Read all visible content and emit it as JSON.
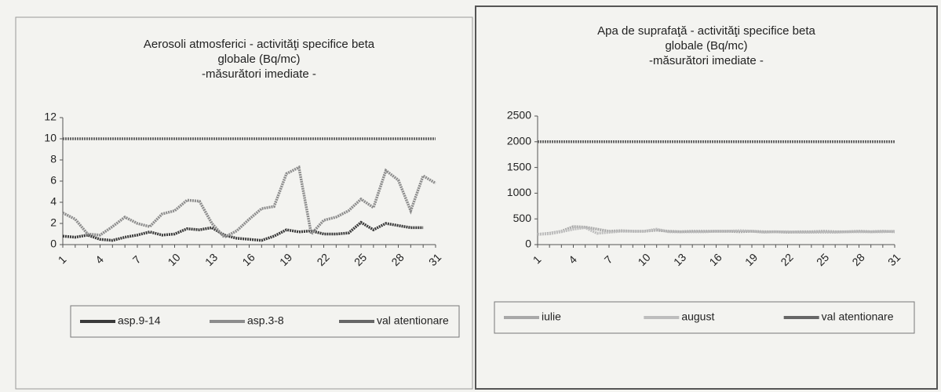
{
  "chart_data": [
    {
      "type": "line",
      "title": [
        "Aerosoli atmosferici  - activităţi specifice beta",
        "globale (Bq/mc)",
        "-măsurători imediate -"
      ],
      "categories": [
        1,
        null,
        null,
        4,
        null,
        null,
        7,
        null,
        null,
        10,
        null,
        null,
        13,
        null,
        null,
        16,
        null,
        null,
        19,
        null,
        null,
        22,
        null,
        null,
        25,
        null,
        null,
        28,
        null,
        null,
        31
      ],
      "series": [
        {
          "name": "asp.9-14",
          "color": "#3a3a3a",
          "values": [
            0.8,
            0.7,
            0.9,
            0.5,
            0.4,
            0.7,
            0.9,
            1.2,
            0.9,
            1.0,
            1.5,
            1.4,
            1.6,
            0.9,
            0.6,
            0.5,
            0.4,
            0.8,
            1.4,
            1.2,
            1.3,
            1.0,
            1.0,
            1.1,
            2.1,
            1.4,
            2.0,
            1.8,
            1.6,
            1.6,
            null
          ]
        },
        {
          "name": "asp.3-8",
          "color": "#8c8c8c",
          "values": [
            3.0,
            2.4,
            1.0,
            0.9,
            1.7,
            2.6,
            2.0,
            1.7,
            2.9,
            3.2,
            4.2,
            4.1,
            2.0,
            0.7,
            1.3,
            2.4,
            3.4,
            3.6,
            6.7,
            7.3,
            1.0,
            2.3,
            2.6,
            3.2,
            4.3,
            3.5,
            7.0,
            6.1,
            3.2,
            6.5,
            5.8
          ]
        },
        {
          "name": "val atentionare",
          "color": "#666666",
          "values": [
            10,
            10,
            10,
            10,
            10,
            10,
            10,
            10,
            10,
            10,
            10,
            10,
            10,
            10,
            10,
            10,
            10,
            10,
            10,
            10,
            10,
            10,
            10,
            10,
            10,
            10,
            10,
            10,
            10,
            10,
            10
          ]
        }
      ],
      "ylim": [
        0,
        12
      ],
      "yticks": [
        0,
        2,
        4,
        6,
        8,
        10,
        12
      ],
      "legend": "bottom"
    },
    {
      "type": "line",
      "title": [
        "Apa de suprafaţă - activităţi specifice beta",
        "globale (Bq/mc)",
        "-măsurători imediate -"
      ],
      "categories": [
        1,
        null,
        null,
        4,
        null,
        null,
        7,
        null,
        null,
        10,
        null,
        null,
        13,
        null,
        null,
        16,
        null,
        null,
        19,
        null,
        null,
        22,
        null,
        null,
        25,
        null,
        null,
        28,
        null,
        null,
        31
      ],
      "series": [
        {
          "name": "iulie",
          "color": "#a8a8a8",
          "values": [
            200,
            220,
            260,
            350,
            340,
            300,
            260,
            270,
            260,
            260,
            280,
            260,
            250,
            260,
            260,
            260,
            260,
            250,
            260,
            250,
            250,
            240,
            250,
            250,
            260,
            250,
            250,
            260,
            250,
            260,
            250
          ]
        },
        {
          "name": "august",
          "color": "#bdbdbd",
          "values": [
            200,
            210,
            250,
            300,
            330,
            220,
            240,
            260,
            260,
            260,
            300,
            250,
            250,
            250,
            250,
            260,
            260,
            270,
            260,
            240,
            250,
            250,
            240,
            240,
            240,
            240,
            250,
            250,
            250,
            250,
            260
          ]
        },
        {
          "name": "val atentionare",
          "color": "#666666",
          "values": [
            2000,
            2000,
            2000,
            2000,
            2000,
            2000,
            2000,
            2000,
            2000,
            2000,
            2000,
            2000,
            2000,
            2000,
            2000,
            2000,
            2000,
            2000,
            2000,
            2000,
            2000,
            2000,
            2000,
            2000,
            2000,
            2000,
            2000,
            2000,
            2000,
            2000,
            2000
          ]
        }
      ],
      "ylim": [
        0,
        2500
      ],
      "yticks": [
        0,
        500,
        1000,
        1500,
        2000,
        2500
      ],
      "legend": "bottom"
    }
  ]
}
